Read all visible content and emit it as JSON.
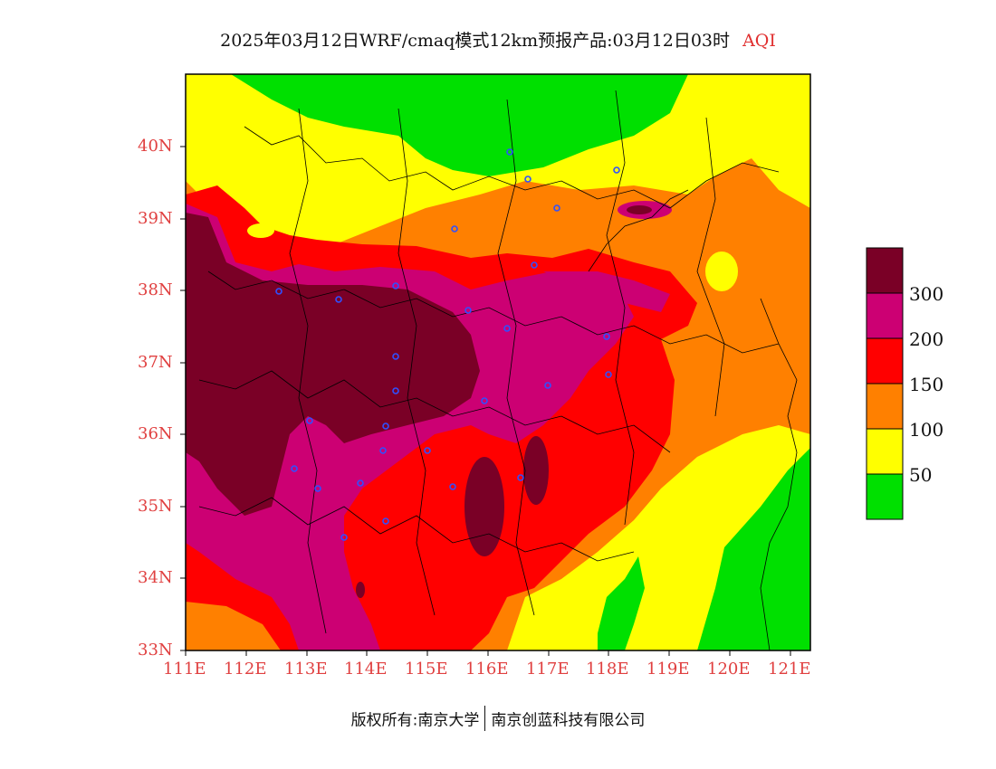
{
  "title": {
    "main": "2025年03月12日WRF/cmaq模式12km预报产品:03月12日03时",
    "variable": "AQI"
  },
  "copyright": {
    "left": "版权所有:南京大学",
    "right": "南京创蓝科技有限公司"
  },
  "axes": {
    "lat_labels": [
      "40N",
      "39N",
      "38N",
      "37N",
      "36N",
      "35N",
      "34N",
      "33N"
    ],
    "lon_labels": [
      "111E",
      "112E",
      "113E",
      "114E",
      "115E",
      "116E",
      "117E",
      "118E",
      "119E",
      "120E",
      "121E"
    ]
  },
  "legend": {
    "levels": [
      {
        "label": "",
        "color": "#7a0026"
      },
      {
        "label": "300",
        "color": "#cc0073"
      },
      {
        "label": "200",
        "color": "#ff0000"
      },
      {
        "label": "150",
        "color": "#ff8000"
      },
      {
        "label": "100",
        "color": "#ffff00"
      },
      {
        "label": "50",
        "color": "#00e000"
      }
    ]
  },
  "colors": {
    "good": "#00e000",
    "moderate": "#ffff00",
    "usg": "#ff8000",
    "unhealthy": "#ff0000",
    "very_unhealthy": "#cc0073",
    "hazardous": "#7a0026",
    "axis_text": "#e04040",
    "station_marker": "#3050ff"
  }
}
